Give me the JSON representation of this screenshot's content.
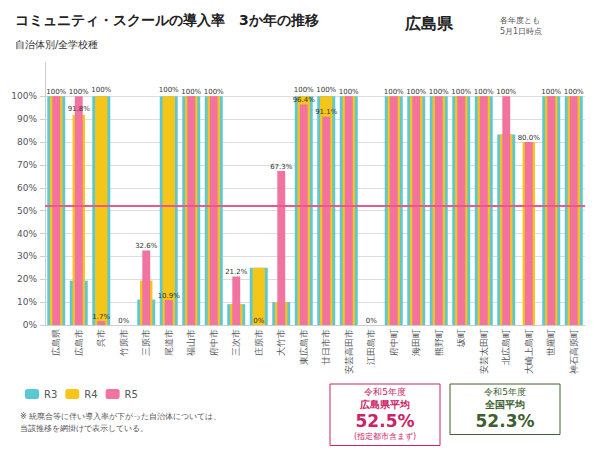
{
  "chart_data": {
    "type": "bar",
    "title": "コミュニティ・スクールの導入率　3か年の推移",
    "subtitle": "自治体別/全学校種",
    "prefecture": "広島県",
    "date_note": "各年度とも\n5月1日時点",
    "note": "※ 統廃合等に伴い導入率が下がった自治体については、\n当該推移を網掛けで表示している。",
    "categories": [
      "広島県",
      "広島市",
      "呉市",
      "竹原市",
      "三原市",
      "尾道市",
      "福山市",
      "府中市",
      "三次市",
      "庄原市",
      "大竹市",
      "東広島市",
      "廿日市市",
      "安芸高田市",
      "江田島市",
      "府中町",
      "海田町",
      "熊野町",
      "坂町",
      "安芸太田町",
      "北広島町",
      "大崎上島町",
      "世羅町",
      "神石高原町"
    ],
    "series": [
      {
        "name": "R3",
        "color": "#5BC8D5",
        "values": [
          100,
          19.4,
          100,
          0,
          11.1,
          100,
          100,
          100,
          9.1,
          25.0,
          10.0,
          100,
          100,
          100,
          0,
          100,
          100,
          100,
          100,
          100,
          83.3,
          0,
          100,
          100
        ]
      },
      {
        "name": "R4",
        "color": "#F5C518",
        "values": [
          100,
          91.8,
          100,
          0,
          19.4,
          100,
          100,
          100,
          9.1,
          25.0,
          10.0,
          100,
          100,
          100,
          0,
          100,
          100,
          100,
          100,
          100,
          83.3,
          80.0,
          100,
          100
        ],
        "value_labels": [
          null,
          "91.8%",
          "100%",
          null,
          null,
          "100%",
          null,
          null,
          null,
          null,
          null,
          "100%",
          "100%",
          null,
          null,
          null,
          null,
          null,
          null,
          null,
          null,
          null,
          null,
          null
        ]
      },
      {
        "name": "R5",
        "color": "#F272A0",
        "values": [
          100,
          100,
          1.7,
          0,
          32.6,
          10.9,
          100,
          100,
          21.2,
          0,
          67.3,
          96.4,
          91.1,
          100,
          0,
          100,
          100,
          100,
          100,
          100,
          100,
          80.0,
          100,
          100
        ],
        "value_labels": [
          "100%",
          "100%",
          "1.7%",
          "0%",
          "32.6%",
          "10.9%",
          "100%",
          "100%",
          "21.2%",
          "0%",
          "67.3%",
          "96.4%",
          "91.1%",
          "100%",
          "0%",
          "100%",
          "100%",
          "100%",
          "100%",
          "100%",
          "100%",
          "80.0%",
          "100%",
          "100%"
        ]
      }
    ],
    "reference_line": {
      "value": 52.3,
      "color": "#E85A8A"
    },
    "callouts": [
      {
        "lines": [
          "令和5年度",
          "広島県平均"
        ],
        "value": 52.5,
        "label": "52.5%",
        "footer": "(指定都市含まず)",
        "color": "#CC2266"
      },
      {
        "lines": [
          "令和5年度",
          "全国平均"
        ],
        "value": 52.3,
        "label": "52.3%",
        "color": "#3D6030"
      }
    ],
    "ylim": [
      0,
      115
    ],
    "yticks": [
      {
        "value": 0,
        "label": "0%"
      },
      {
        "value": 10,
        "label": "10%"
      },
      {
        "value": 20,
        "label": "20%"
      },
      {
        "value": 30,
        "label": "30%"
      },
      {
        "value": 40,
        "label": "40%"
      },
      {
        "value": 50,
        "label": "50%"
      },
      {
        "value": 60,
        "label": "60%"
      },
      {
        "value": 70,
        "label": "70%"
      },
      {
        "value": 80,
        "label": "80%"
      },
      {
        "value": 90,
        "label": "90%"
      },
      {
        "value": 100,
        "label": "100%"
      }
    ],
    "grid": true,
    "legend": "bottom",
    "data_labels": true
  }
}
